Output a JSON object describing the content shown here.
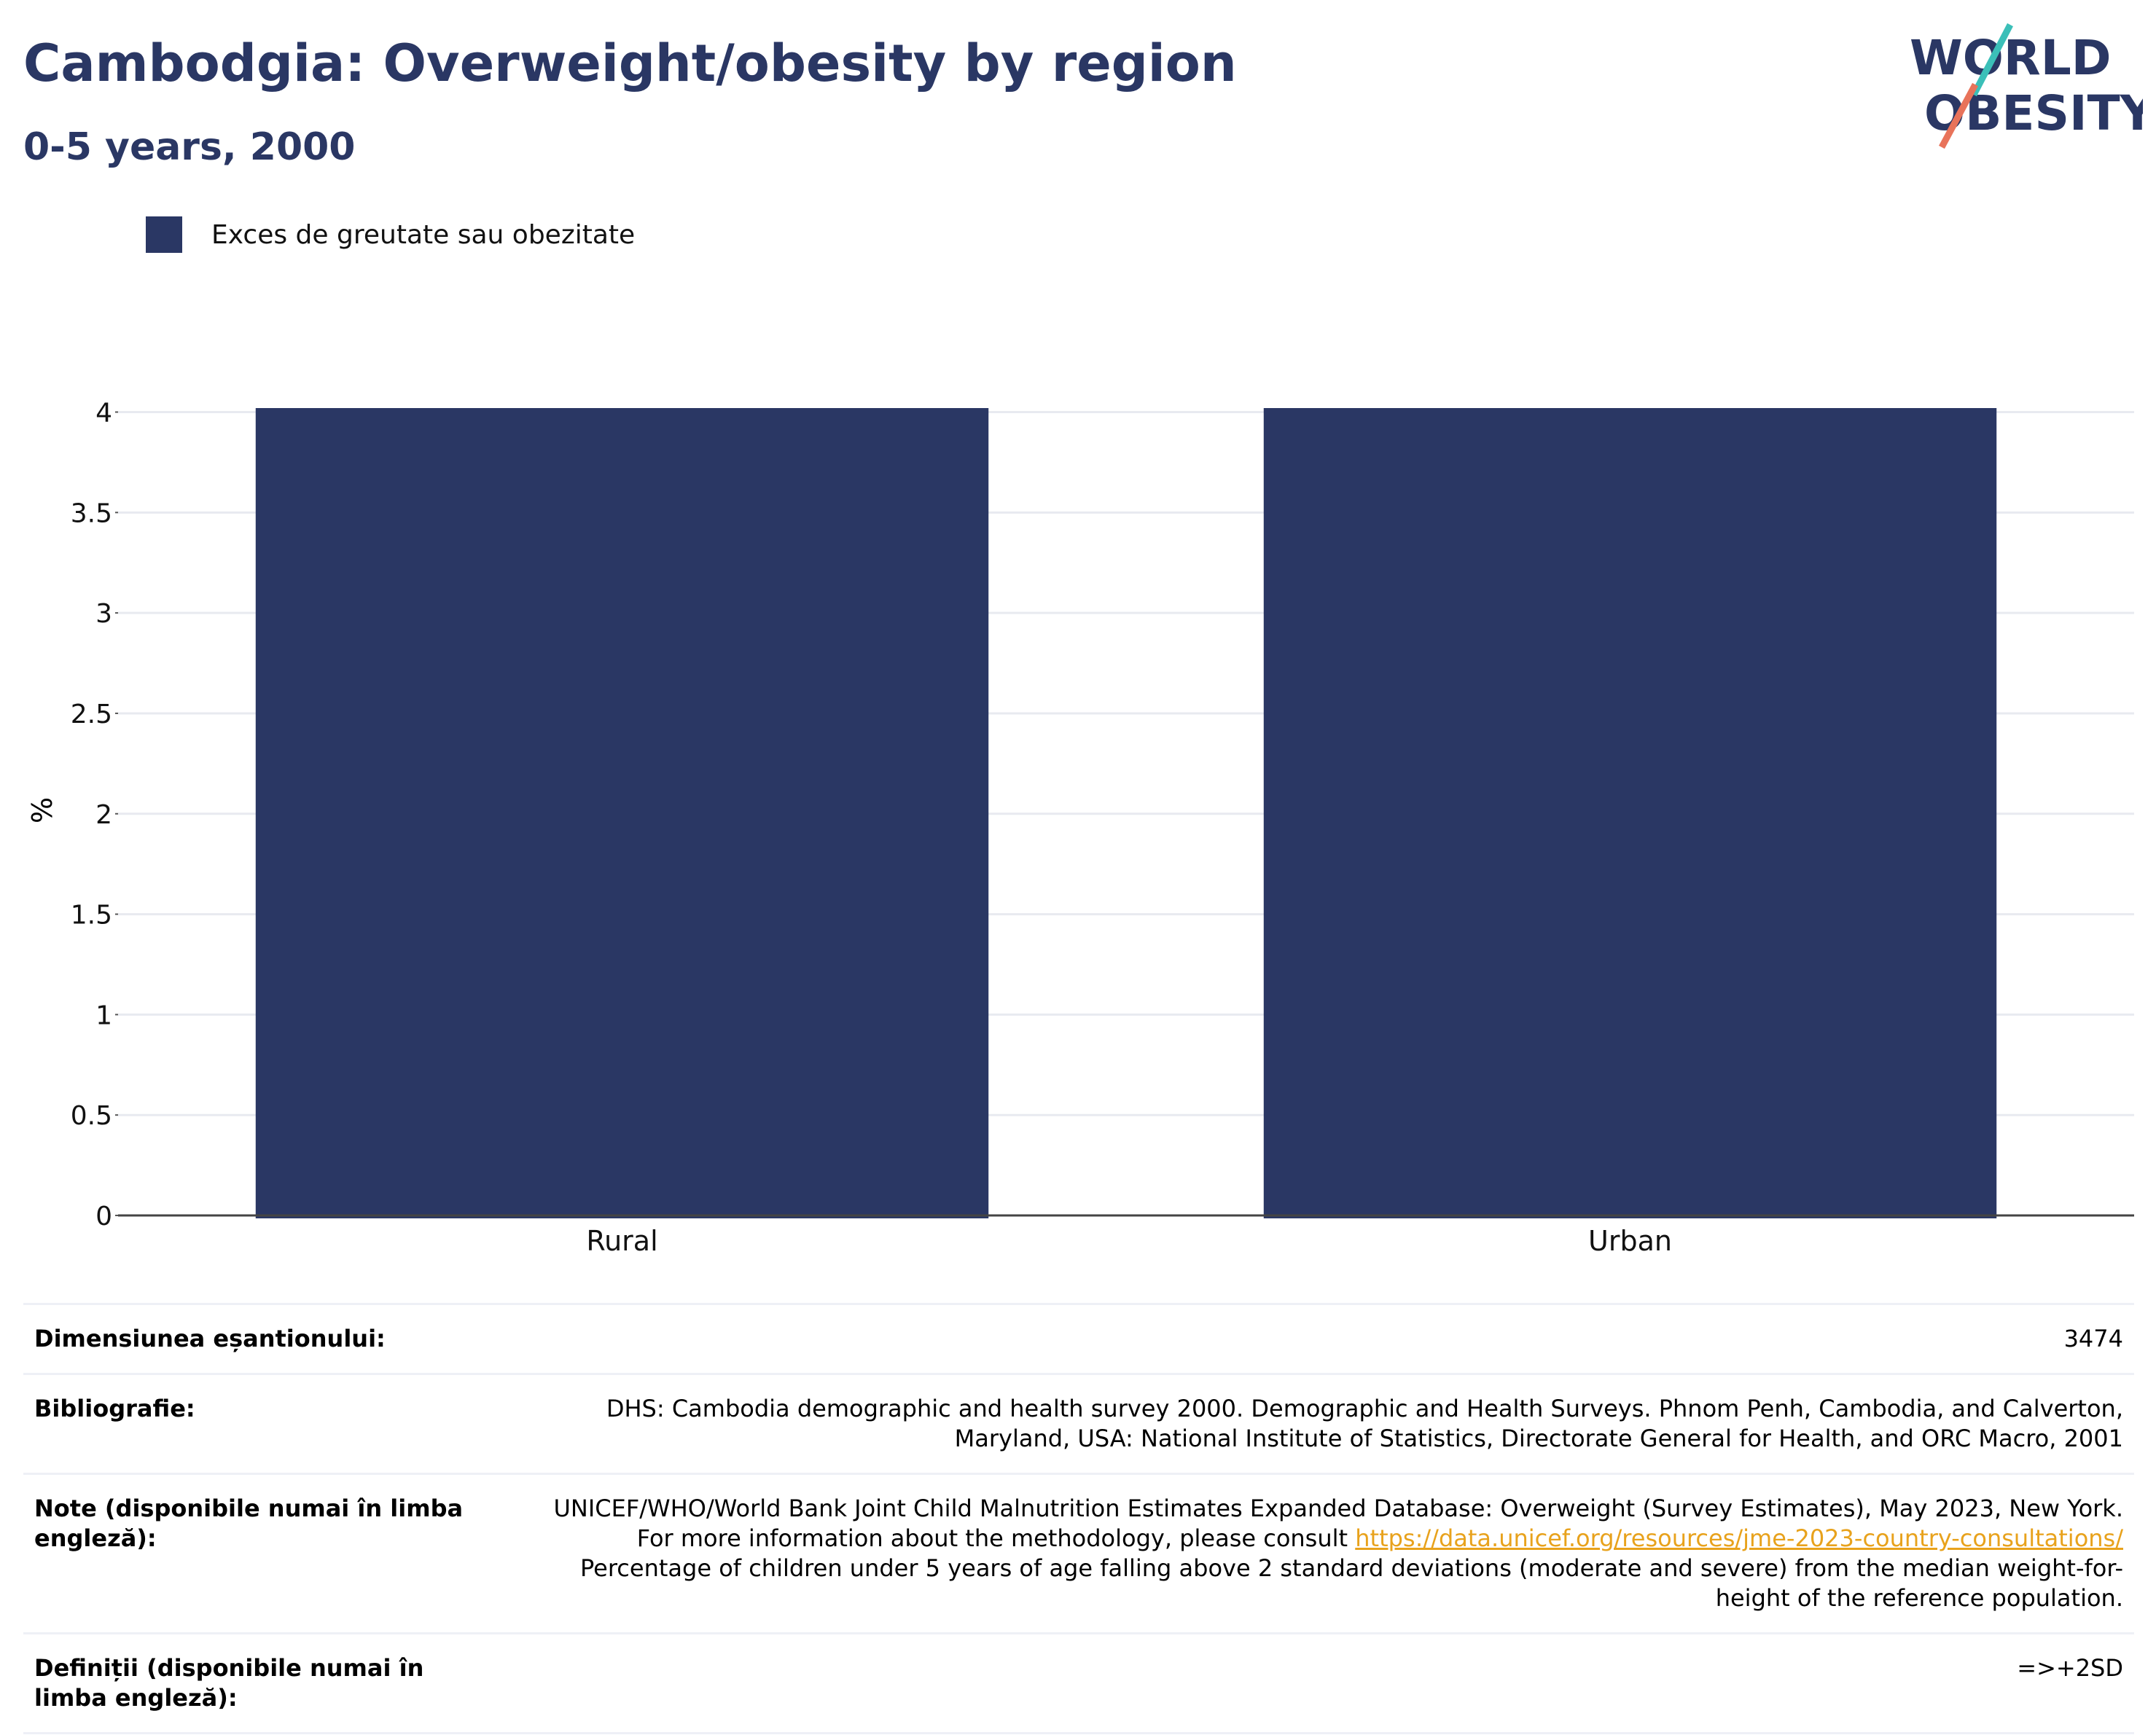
{
  "header": {
    "title": "Cambodgia: Overweight/obesity by region",
    "subtitle": "0-5 years, 2000"
  },
  "logo": {
    "line1": "WORLD",
    "line2": "OBESITY"
  },
  "legend": {
    "label": "Exces de greutate sau obezitate"
  },
  "colors": {
    "bar": "#2a3764",
    "title": "#2a3764",
    "link": "#e8a21c",
    "logo_teal": "#3bbfb8",
    "logo_coral": "#e8735a"
  },
  "chart_data": {
    "type": "bar",
    "title": "Cambodgia: Overweight/obesity by region",
    "subtitle": "0-5 years, 2000",
    "categories": [
      "Rural",
      "Urban"
    ],
    "series": [
      {
        "name": "Exces de greutate sau obezitate",
        "values": [
          4.02,
          4.02
        ]
      }
    ],
    "xlabel": "",
    "ylabel": "%",
    "ylim": [
      0,
      4.02
    ],
    "yticks": [
      0,
      0.5,
      1,
      1.5,
      2,
      2.5,
      3,
      3.5,
      4
    ],
    "ytick_labels": [
      "0",
      "0.5",
      "1",
      "1.5",
      "2",
      "2.5",
      "3",
      "3.5",
      "4"
    ],
    "grid": true,
    "legend_position": "top-left"
  },
  "meta": {
    "sample_label": "Dimensiunea eșantionului:",
    "sample_value": "3474",
    "biblio_label": "Bibliografie:",
    "biblio_value": "DHS: Cambodia demographic and health survey 2000. Demographic and Health Surveys. Phnom Penh, Cambodia, and Calverton, Maryland, USA: National Institute of Statistics, Directorate General for Health, and ORC Macro, 2001",
    "notes_label": "Note (disponibile numai în limba engleză):",
    "notes_text_1": "UNICEF/WHO/World Bank Joint Child Malnutrition Estimates Expanded Database: Overweight (Survey Estimates), May 2023, New York. For more information about the methodology, please consult ",
    "notes_link": "https://data.unicef.org/resources/jme-2023-country-consultations/",
    "notes_text_2": " Percentage of children under 5 years of age falling above 2 standard deviations (moderate and severe) from the median weight-for-height of the reference population.",
    "definitions_label": "Definiții (disponibile numai în limba engleză):",
    "definitions_value": "=>+2SD"
  }
}
